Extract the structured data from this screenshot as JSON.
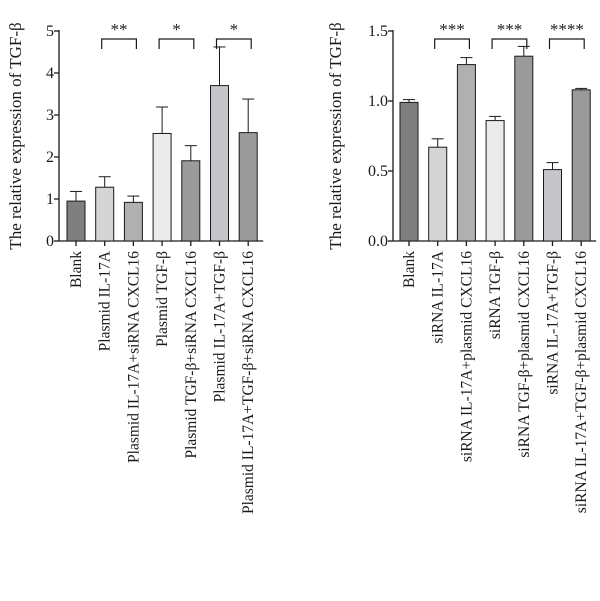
{
  "chart_data": [
    {
      "type": "bar",
      "ylabel": "The relative expression of TGF-β",
      "ylim": [
        0,
        5
      ],
      "yticks": [
        "0",
        "1",
        "2",
        "3",
        "4",
        "5"
      ],
      "categories": [
        "Blank",
        "Plasmid IL-17A",
        "Plasmid IL-17A+siRNA CXCL16",
        "Plasmid TGF-β",
        "Plasmid TGF-β+siRNA CXCL16",
        "Plasmid IL-17A+TGF-β",
        "Plasmid IL-17A+TGF-β+siRNA CXCL16"
      ],
      "values": [
        0.95,
        1.28,
        0.92,
        2.56,
        1.91,
        3.7,
        2.58
      ],
      "errors": [
        0.23,
        0.25,
        0.15,
        0.63,
        0.36,
        0.92,
        0.8
      ],
      "colors": [
        "#7f7f7f",
        "#d5d5d5",
        "#b0b0b0",
        "#ebebeb",
        "#9b9b9b",
        "#c6c6ca",
        "#9a9a9a"
      ],
      "significance": [
        {
          "from": 1,
          "to": 2,
          "label": "**"
        },
        {
          "from": 3,
          "to": 4,
          "label": "*"
        },
        {
          "from": 5,
          "to": 6,
          "label": "*"
        }
      ]
    },
    {
      "type": "bar",
      "ylabel": "The relative expression of TGF-β",
      "ylim": [
        0,
        1.5
      ],
      "yticks": [
        "0.0",
        "0.5",
        "1.0",
        "1.5"
      ],
      "categories": [
        "Blank",
        "siRNA IL-17A",
        "siRNA IL-17A+plasmid CXCL16",
        "siRNA TGF-β",
        "siRNA TGF-β+plasmid CXCL16",
        "siRNA IL-17A+TGF-β",
        "siRNA IL-17A+TGF-β+plasmid CXCL16"
      ],
      "values": [
        0.99,
        0.67,
        1.26,
        0.86,
        1.32,
        0.51,
        1.08
      ],
      "errors": [
        0.02,
        0.06,
        0.05,
        0.03,
        0.07,
        0.05,
        0.01
      ],
      "colors": [
        "#7f7f7f",
        "#d5d5d5",
        "#b0b0b0",
        "#ebebeb",
        "#9b9b9b",
        "#c6c6ca",
        "#9a9a9a"
      ],
      "significance": [
        {
          "from": 1,
          "to": 2,
          "label": "***"
        },
        {
          "from": 3,
          "to": 4,
          "label": "***"
        },
        {
          "from": 5,
          "to": 6,
          "label": "****"
        }
      ]
    }
  ]
}
